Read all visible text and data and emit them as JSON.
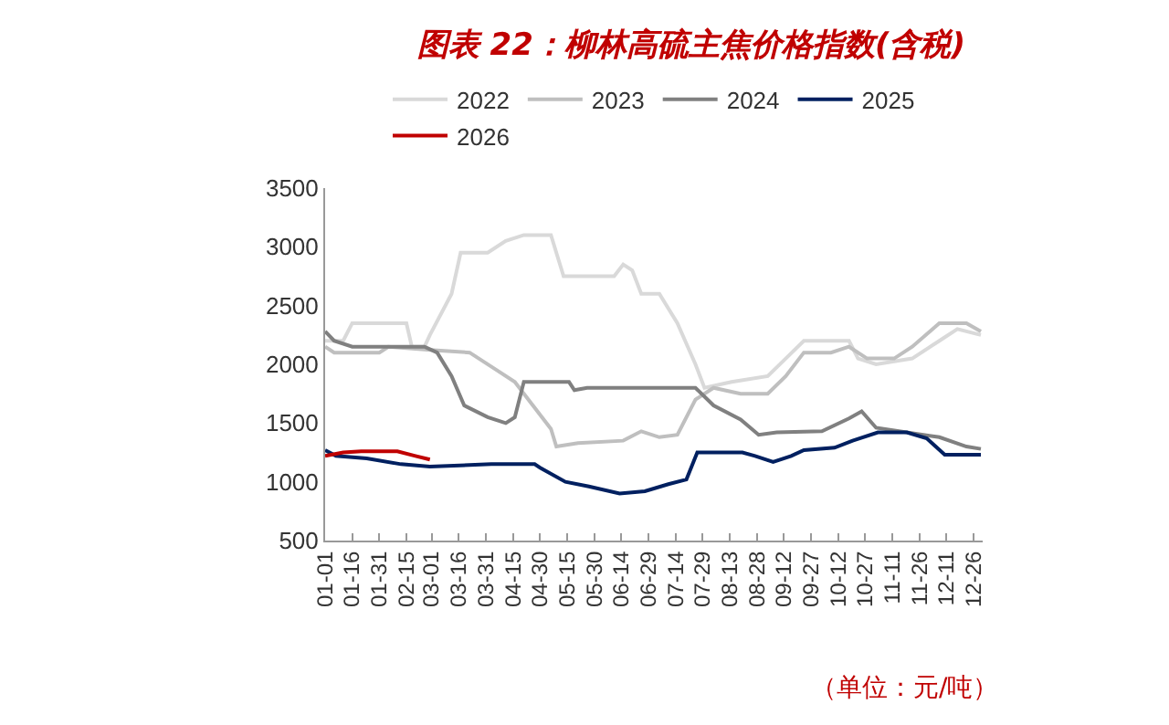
{
  "chart_data": {
    "type": "line",
    "title": "图表 22：柳林高硫主焦价格指数(含税)",
    "annotations": [
      "（单位：元/吨）"
    ],
    "series": [
      {
        "name": "2022",
        "color": "#d9d9d9",
        "x": [
          "--01-01",
          "--01-11",
          "--01-16",
          "--02-15",
          "--02-18",
          "--02-25",
          "--02-28",
          "--03-12",
          "--03-17",
          "--04-01",
          "--04-11",
          "--04-21",
          "--05-06",
          "--05-13",
          "--06-10",
          "--06-15",
          "--06-20",
          "--06-25",
          "--07-05",
          "--07-15",
          "--07-25",
          "--07-30",
          "--08-14",
          "--09-03",
          "--09-13",
          "--09-23",
          "--10-18",
          "--10-23",
          "--11-02",
          "--11-22",
          "--12-07",
          "--12-17",
          "--12-30"
        ],
        "values": [
          2200,
          2200,
          2350,
          2350,
          2150,
          2150,
          2250,
          2600,
          2950,
          2950,
          3050,
          3100,
          3100,
          2750,
          2750,
          2850,
          2800,
          2600,
          2600,
          2350,
          2000,
          1800,
          1850,
          1900,
          2050,
          2200,
          2200,
          2050,
          2000,
          2050,
          2200,
          2300,
          2250
        ]
      },
      {
        "name": "2023",
        "color": "#bfbfbf",
        "x": [
          "--01-01",
          "--01-06",
          "--01-31",
          "--02-05",
          "--03-02",
          "--03-22",
          "--04-06",
          "--04-16",
          "--04-26",
          "--05-06",
          "--05-09",
          "--05-21",
          "--06-15",
          "--06-25",
          "--07-05",
          "--07-15",
          "--07-25",
          "--08-04",
          "--08-19",
          "--09-03",
          "--09-13",
          "--09-23",
          "--10-08",
          "--10-18",
          "--10-28",
          "--11-12",
          "--11-22",
          "--12-07",
          "--12-22",
          "--12-30"
        ],
        "values": [
          2150,
          2100,
          2100,
          2150,
          2120,
          2100,
          1950,
          1850,
          1650,
          1450,
          1300,
          1330,
          1350,
          1430,
          1380,
          1400,
          1700,
          1800,
          1750,
          1750,
          1900,
          2100,
          2100,
          2150,
          2050,
          2050,
          2150,
          2350,
          2350,
          2280
        ]
      },
      {
        "name": "2024",
        "color": "#808080",
        "x": [
          "--01-01",
          "--01-06",
          "--01-16",
          "--02-25",
          "--03-04",
          "--03-12",
          "--03-19",
          "--04-01",
          "--04-11",
          "--04-16",
          "--04-21",
          "--05-16",
          "--05-19",
          "--05-26",
          "--07-25",
          "--08-04",
          "--08-19",
          "--08-29",
          "--09-08",
          "--10-03",
          "--10-18",
          "--10-25",
          "--11-02",
          "--12-07",
          "--12-22",
          "--12-30"
        ],
        "values": [
          2280,
          2200,
          2150,
          2150,
          2100,
          1900,
          1650,
          1550,
          1500,
          1550,
          1850,
          1850,
          1780,
          1800,
          1800,
          1650,
          1530,
          1400,
          1420,
          1430,
          1540,
          1600,
          1460,
          1380,
          1300,
          1280
        ]
      },
      {
        "name": "2025",
        "color": "#002060",
        "x": [
          "--01-01",
          "--01-07",
          "--01-24",
          "--02-12",
          "--02-28",
          "--04-03",
          "--04-27",
          "--04-30",
          "--05-14",
          "--05-27",
          "--06-13",
          "--06-27",
          "--07-10",
          "--07-20",
          "--07-26",
          "--08-20",
          "--08-27",
          "--09-06",
          "--09-16",
          "--09-23",
          "--10-10",
          "--10-20",
          "--11-03",
          "--11-19",
          "--11-30",
          "--12-10",
          "--12-30"
        ],
        "values": [
          1270,
          1220,
          1200,
          1150,
          1130,
          1150,
          1150,
          1120,
          1000,
          960,
          900,
          920,
          980,
          1020,
          1250,
          1250,
          1220,
          1170,
          1220,
          1270,
          1290,
          1350,
          1420,
          1420,
          1370,
          1230,
          1230
        ]
      },
      {
        "name": "2026",
        "color": "#c00000",
        "x": [
          "--01-01",
          "--01-11",
          "--01-21",
          "--02-10",
          "--02-20",
          "--02-28"
        ],
        "values": [
          1220,
          1250,
          1260,
          1260,
          1220,
          1190
        ]
      }
    ],
    "xlim": [
      "--01-01",
      "--12-31"
    ],
    "xticks": [
      {
        "value": "--01-01",
        "label": "01-01"
      },
      {
        "value": "--01-16",
        "label": "01-16"
      },
      {
        "value": "--01-31",
        "label": "01-31"
      },
      {
        "value": "--02-15",
        "label": "02-15"
      },
      {
        "value": "--03-01",
        "label": "03-01"
      },
      {
        "value": "--03-16",
        "label": "03-16"
      },
      {
        "value": "--03-31",
        "label": "03-31"
      },
      {
        "value": "--04-15",
        "label": "04-15"
      },
      {
        "value": "--04-30",
        "label": "04-30"
      },
      {
        "value": "--05-15",
        "label": "05-15"
      },
      {
        "value": "--05-30",
        "label": "05-30"
      },
      {
        "value": "--06-14",
        "label": "06-14"
      },
      {
        "value": "--06-29",
        "label": "06-29"
      },
      {
        "value": "--07-14",
        "label": "07-14"
      },
      {
        "value": "--07-29",
        "label": "07-29"
      },
      {
        "value": "--08-13",
        "label": "08-13"
      },
      {
        "value": "--08-28",
        "label": "08-28"
      },
      {
        "value": "--09-12",
        "label": "09-12"
      },
      {
        "value": "--09-27",
        "label": "09-27"
      },
      {
        "value": "--10-12",
        "label": "10-12"
      },
      {
        "value": "--10-27",
        "label": "10-27"
      },
      {
        "value": "--11-11",
        "label": "11-11"
      },
      {
        "value": "--11-26",
        "label": "11-26"
      },
      {
        "value": "--12-11",
        "label": "12-11"
      },
      {
        "value": "--12-26",
        "label": "12-26"
      }
    ],
    "ylim": [
      500,
      3500
    ],
    "yticks": [
      500,
      1000,
      1500,
      2000,
      2500,
      3000,
      3500
    ],
    "grid": false,
    "legend": "top",
    "marker": "none",
    "line_style": "solid"
  }
}
